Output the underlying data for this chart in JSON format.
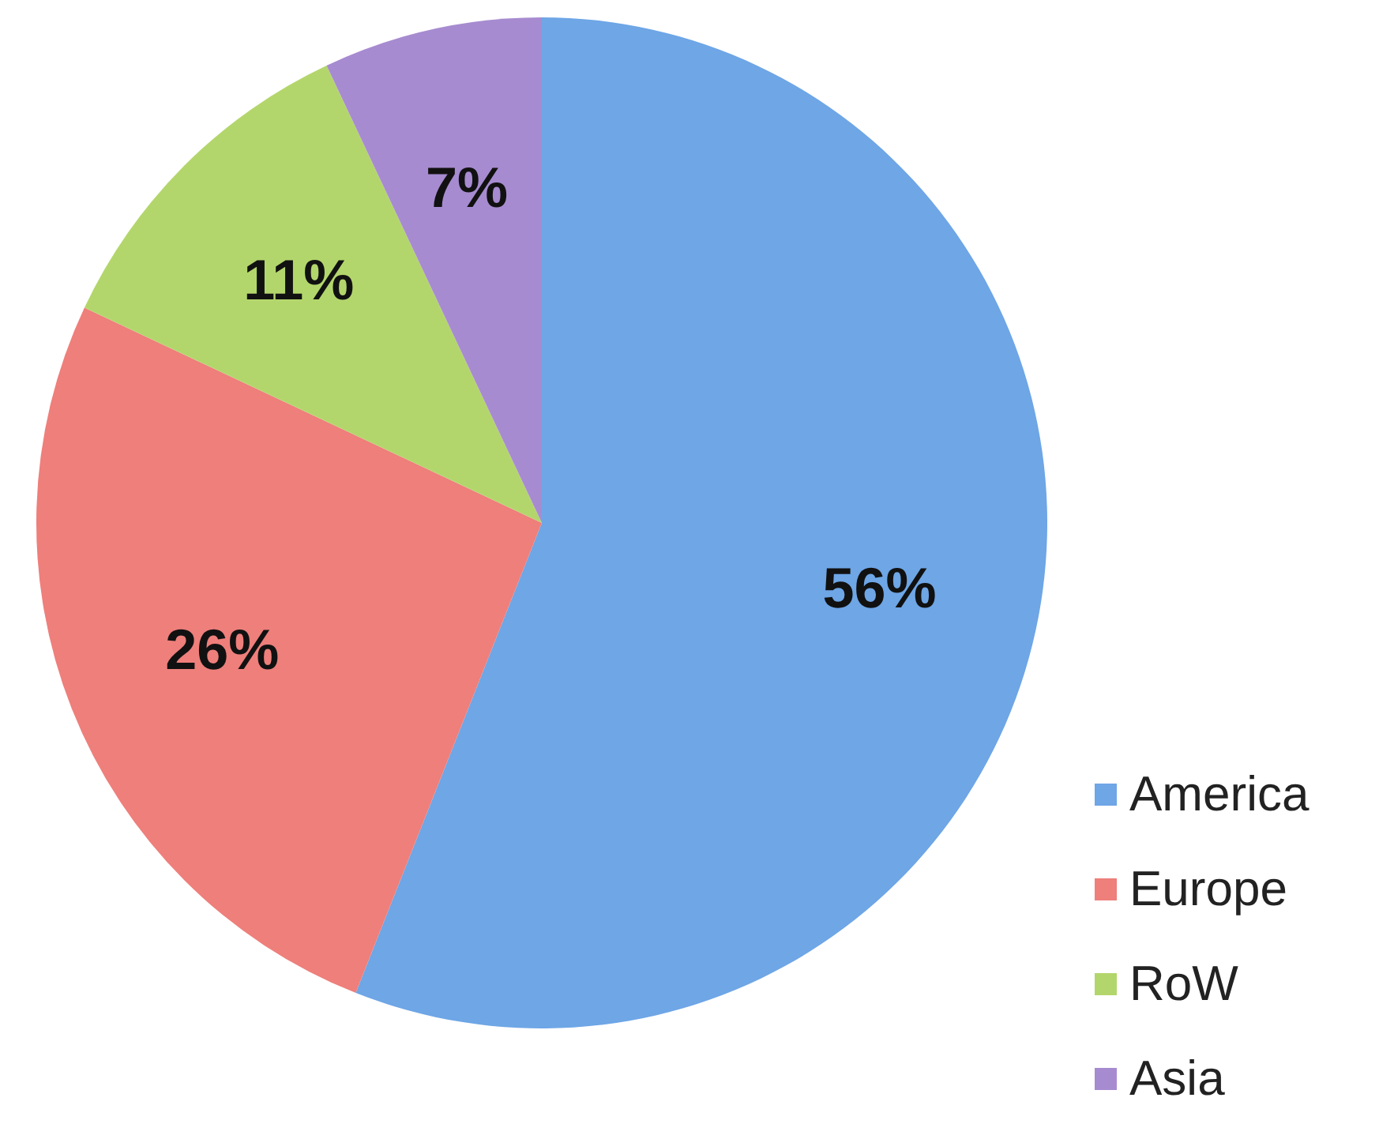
{
  "chart_data": {
    "type": "pie",
    "categories": [
      "America",
      "Europe",
      "RoW",
      "Asia"
    ],
    "values": [
      56,
      26,
      11,
      7
    ],
    "colors": [
      "#6ea6e6",
      "#ee7f7b",
      "#b3d66c",
      "#a78bd0"
    ],
    "value_labels": [
      "56%",
      "26%",
      "11%",
      "7%"
    ],
    "legend": "bottom right"
  }
}
